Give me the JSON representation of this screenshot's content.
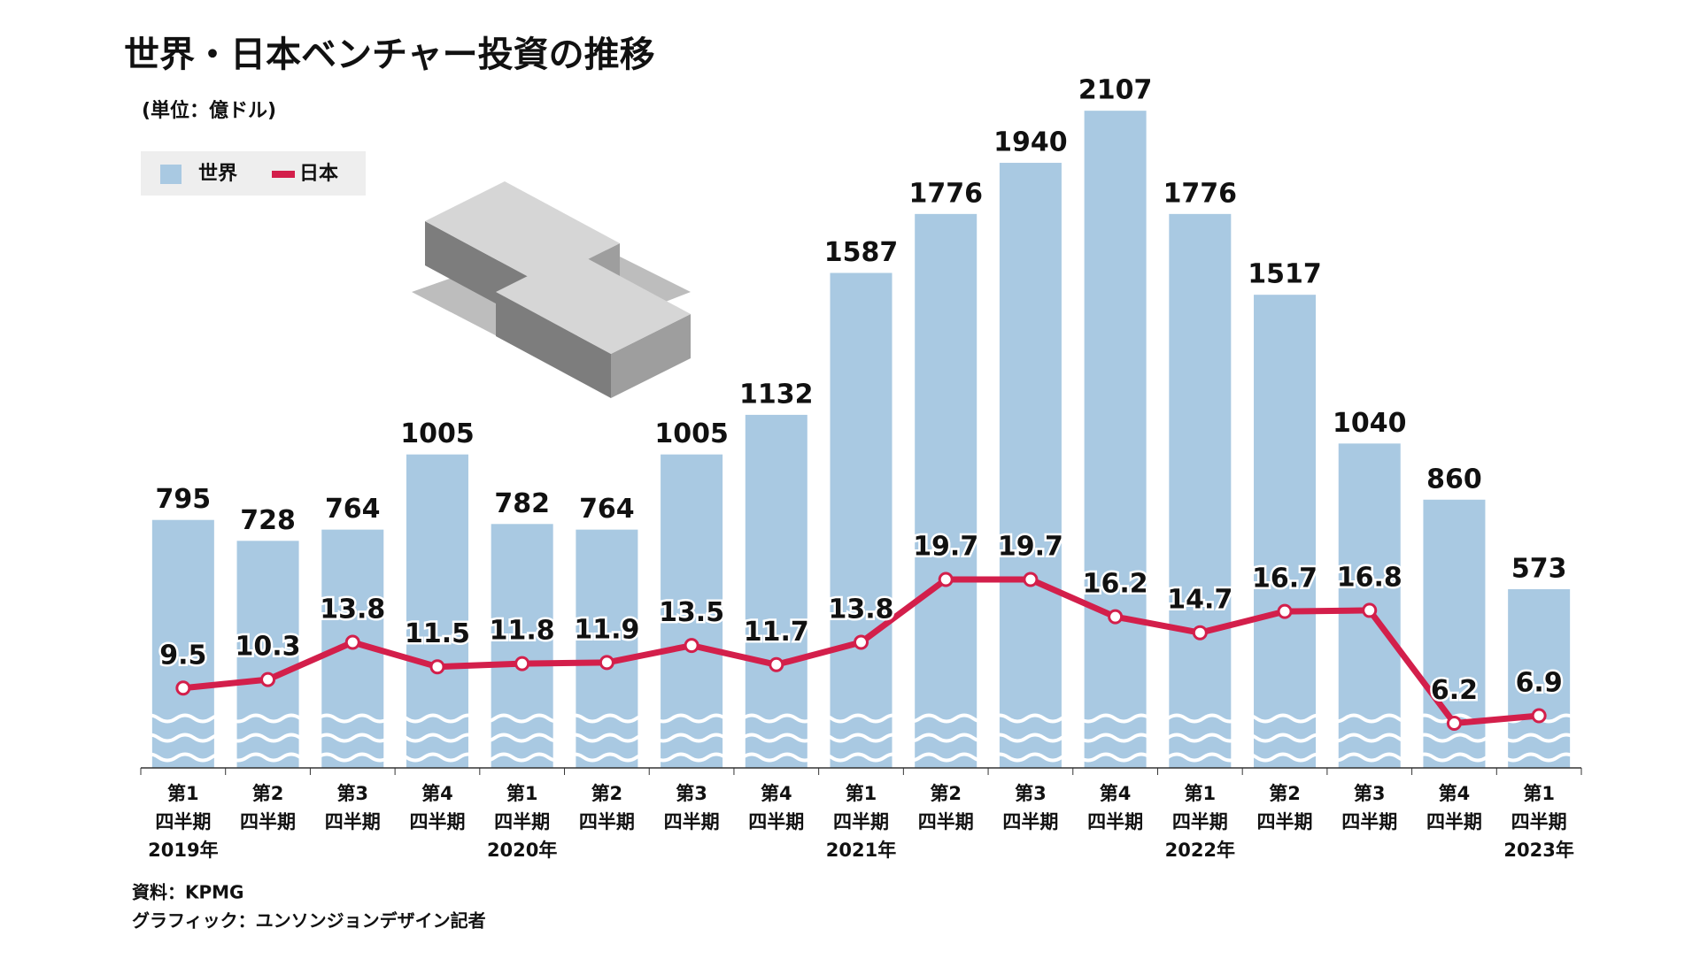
{
  "chart_data": {
    "type": "bar_line",
    "title": "世界・日本ベンチャー投資の推移",
    "subtitle": "(単位：億ドル)",
    "categories": [
      [
        "第1",
        "四半期",
        "2019年"
      ],
      [
        "第2",
        "四半期"
      ],
      [
        "第3",
        "四半期"
      ],
      [
        "第4",
        "四半期"
      ],
      [
        "第1",
        "四半期",
        "2020年"
      ],
      [
        "第2",
        "四半期"
      ],
      [
        "第3",
        "四半期"
      ],
      [
        "第4",
        "四半期"
      ],
      [
        "第1",
        "四半期",
        "2021年"
      ],
      [
        "第2",
        "四半期"
      ],
      [
        "第3",
        "四半期"
      ],
      [
        "第4",
        "四半期"
      ],
      [
        "第1",
        "四半期",
        "2022年"
      ],
      [
        "第2",
        "四半期"
      ],
      [
        "第3",
        "四半期"
      ],
      [
        "第4",
        "四半期"
      ],
      [
        "第1",
        "四半期",
        "2023年"
      ]
    ],
    "series": [
      {
        "name": "世界",
        "color": "#a9c9e2",
        "values": [
          795,
          728,
          764,
          1005,
          782,
          764,
          1005,
          1132,
          1587,
          1776,
          1940,
          2107,
          1776,
          1517,
          1040,
          860,
          573
        ]
      },
      {
        "name": "日本",
        "color": "#d31f4b",
        "axis": "y2",
        "values": [
          9.5,
          10.3,
          13.8,
          11.5,
          11.8,
          11.9,
          13.5,
          11.7,
          13.8,
          19.7,
          19.7,
          16.2,
          14.7,
          16.7,
          16.8,
          6.2,
          6.9
        ]
      }
    ],
    "ylim": [
      0,
      2150
    ],
    "y2lim": [
      2,
      65
    ],
    "source": "資料：KPMG",
    "credit": "グラフィック：ユンソンジョンデザイン記者"
  }
}
